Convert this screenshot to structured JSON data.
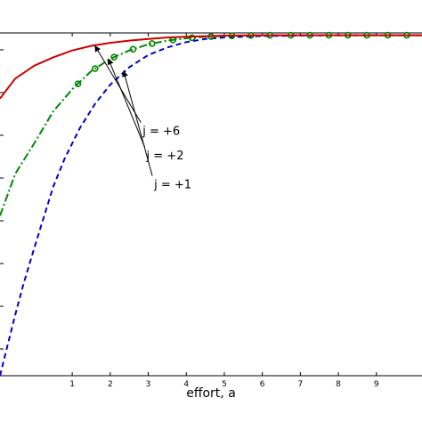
{
  "chart_data": {
    "type": "line",
    "title": "",
    "xlabel": "effort, a",
    "ylabel": "",
    "xlim": [
      -0.9,
      10.2
    ],
    "ylim": [
      -0.15,
      0.3
    ],
    "x_ticks": [
      1,
      2,
      3,
      4,
      5,
      6,
      7,
      8,
      9
    ],
    "grid": false,
    "colors": {
      "j6": "#cc0000",
      "j2": "#008800",
      "j1": "#0000cc",
      "axes": "#000000"
    },
    "series": [
      {
        "line_style": "solid",
        "x": [
          -0.9,
          -0.5,
          0,
          0.5,
          1,
          1.5,
          2,
          2.5,
          3,
          3.5,
          4,
          5,
          6,
          7,
          8,
          9,
          10,
          10.2
        ],
        "values": [
          0.214,
          0.24,
          0.257,
          0.268,
          0.277,
          0.283,
          0.287,
          0.29,
          0.292,
          0.294,
          0.295,
          0.2965,
          0.297,
          0.297,
          0.297,
          0.297,
          0.297,
          0.297
        ]
      },
      {
        "line_style": "dash-dot",
        "marker": "circle",
        "x": [
          -0.9,
          -0.5,
          0,
          0.5,
          1,
          1.5,
          2,
          2.5,
          3,
          3.5,
          4,
          4.5,
          5,
          5.5,
          6,
          6.5,
          7,
          7.5,
          8,
          8.5,
          9,
          9.5,
          10,
          10.2
        ],
        "values": [
          0.06,
          0.115,
          0.155,
          0.197,
          0.226,
          0.25,
          0.266,
          0.277,
          0.285,
          0.29,
          0.293,
          0.295,
          0.296,
          0.2965,
          0.297,
          0.297,
          0.297,
          0.297,
          0.297,
          0.297,
          0.297,
          0.297,
          0.297,
          0.297
        ],
        "marker_x": [
          1.15,
          1.6,
          2.1,
          2.6,
          3.1,
          3.65,
          4.15,
          4.65,
          5.2,
          5.7,
          6.2,
          6.75,
          7.25,
          7.75,
          8.25,
          8.75,
          9.3,
          9.8
        ]
      },
      {
        "line_style": "dashed",
        "x": [
          -0.9,
          -0.7,
          -0.5,
          -0.3,
          -0.1,
          0.2,
          0.5,
          0.8,
          1.2,
          1.6,
          2,
          2.5,
          3,
          3.5,
          4,
          4.5,
          5,
          6,
          7,
          8,
          9,
          10,
          10.2
        ],
        "values": [
          -0.15,
          -0.11,
          -0.07,
          -0.033,
          0.001,
          0.05,
          0.098,
          0.135,
          0.175,
          0.207,
          0.232,
          0.255,
          0.271,
          0.281,
          0.288,
          0.292,
          0.294,
          0.296,
          0.2965,
          0.297,
          0.297,
          0.297,
          0.297
        ]
      }
    ],
    "annotations": [
      {
        "text": "j = +6",
        "target_series": 0,
        "target_x": 1.6,
        "target_y": 0.283,
        "label_x": 2.9,
        "label_y": 0.166
      },
      {
        "text": "j = +2",
        "target_series": 1,
        "target_x": 1.95,
        "target_y": 0.266,
        "label_x": 3.0,
        "label_y": 0.134
      },
      {
        "text": "j = +1",
        "target_series": 2,
        "target_x": 2.35,
        "target_y": 0.25,
        "label_x": 3.2,
        "label_y": 0.096
      }
    ]
  }
}
